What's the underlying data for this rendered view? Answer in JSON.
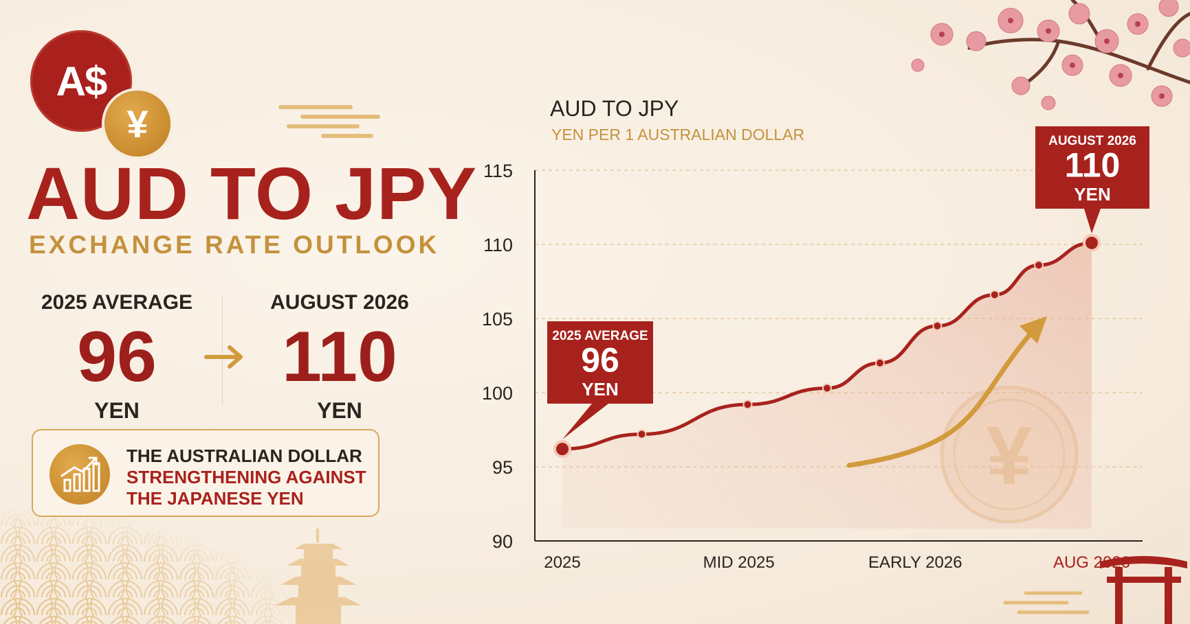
{
  "brand": {
    "aud_badge": "A$",
    "yen_badge": "¥"
  },
  "headline": {
    "title": "AUD TO JPY",
    "subtitle": "EXCHANGE RATE OUTLOOK"
  },
  "stats": {
    "from": {
      "label": "2025 AVERAGE",
      "value": "96",
      "unit": "YEN"
    },
    "to": {
      "label": "AUGUST 2026",
      "value": "110",
      "unit": "YEN"
    }
  },
  "note": {
    "line1": "THE AUSTRALIAN DOLLAR",
    "line2": "STRENGTHENING AGAINST",
    "line3": "THE JAPANESE YEN"
  },
  "colors": {
    "primary_red": "#a8221d",
    "gold": "#c4913d",
    "text_dark": "#2a2420",
    "background": "#f8efe4"
  },
  "chart_data": {
    "type": "line",
    "title": "AUD TO JPY",
    "subtitle": "YEN PER 1 AUSTRALIAN DOLLAR",
    "ylim": [
      90,
      115
    ],
    "yticks": [
      "115",
      "110",
      "105",
      "100",
      "95",
      "90"
    ],
    "ytick_values": [
      115,
      110,
      105,
      100,
      95,
      90
    ],
    "x_tick_labels": [
      "2025",
      "MID 2025",
      "EARLY 2026",
      "AUG 2026"
    ],
    "x_tick_positions": [
      0,
      0.4,
      0.8,
      1.2
    ],
    "grid": true,
    "series": [
      {
        "x": [
          0,
          0.18,
          0.42,
          0.6,
          0.72,
          0.85,
          0.98,
          1.08,
          1.2
        ],
        "y": [
          96.2,
          97.2,
          99.2,
          100.3,
          102.0,
          104.5,
          106.6,
          108.6,
          110.1
        ],
        "color": "#a8221d"
      }
    ],
    "callouts": {
      "start": {
        "label": "2025 AVERAGE",
        "value": "96",
        "unit": "YEN"
      },
      "end": {
        "label": "AUGUST 2026",
        "value": "110",
        "unit": "YEN"
      }
    }
  }
}
